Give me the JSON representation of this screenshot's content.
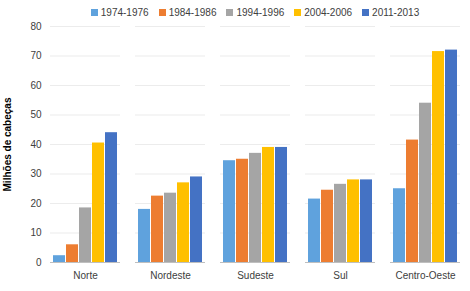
{
  "chart_data": {
    "type": "bar",
    "categories": [
      "Norte",
      "Nordeste",
      "Sudeste",
      "Sul",
      "Centro-Oeste"
    ],
    "series": [
      {
        "name": "1974-1976",
        "color": "#5fa2dd",
        "values": [
          2.3,
          18,
          34.5,
          21.5,
          25
        ]
      },
      {
        "name": "1984-1986",
        "color": "#ed7d31",
        "values": [
          6,
          22.5,
          35,
          24.5,
          41.5
        ]
      },
      {
        "name": "1994-1996",
        "color": "#a5a5a5",
        "values": [
          18.5,
          23.5,
          37,
          26.5,
          54
        ]
      },
      {
        "name": "2004-2006",
        "color": "#ffc000",
        "values": [
          40.5,
          27,
          39,
          28,
          71.5
        ]
      },
      {
        "name": "2011-2013",
        "color": "#4472c4",
        "values": [
          44,
          29,
          39,
          28,
          72
        ]
      }
    ],
    "y_label": "Milhões de cabeças",
    "ylim": [
      0,
      80
    ],
    "yticks": [
      0,
      10,
      20,
      30,
      40,
      50,
      60,
      70,
      80
    ],
    "grid": true,
    "legend": "top"
  }
}
